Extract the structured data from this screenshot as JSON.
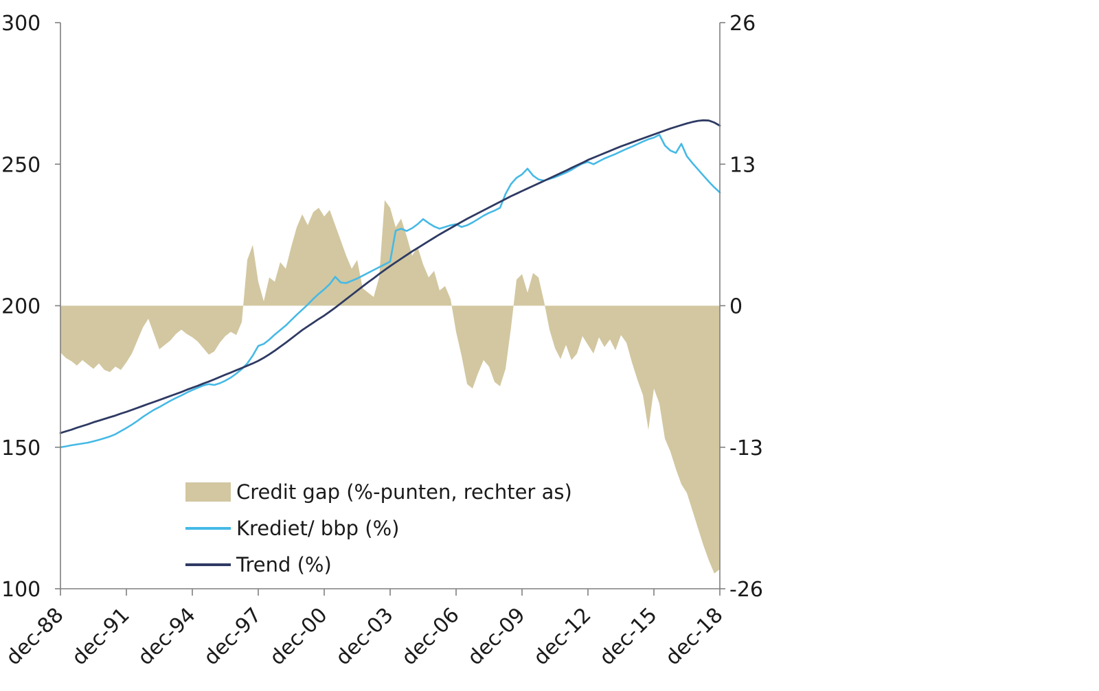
{
  "colors": {
    "background": "#ffffff",
    "area": "#d2c7a0",
    "credit_line": "#45b9e6",
    "trend_line": "#2e3a63",
    "axis": "#7f7f7f",
    "text": "#1a1a1a"
  },
  "legend": {
    "items": [
      {
        "label": "Credit gap (%-punten, rechter as)",
        "type": "area"
      },
      {
        "label": "Krediet/ bbp (%)",
        "type": "line"
      },
      {
        "label": "Trend (%)",
        "type": "line"
      }
    ]
  },
  "chart_data": {
    "type": "line+area",
    "title": "",
    "x_tick_labels": [
      "dec-88",
      "dec-91",
      "dec-94",
      "dec-97",
      "dec-00",
      "dec-03",
      "dec-06",
      "dec-09",
      "dec-12",
      "dec-15",
      "dec-18"
    ],
    "x_frequency": "quarterly",
    "x_ticks_every_n_points": 12,
    "left_axis": {
      "tick_labels": [
        "300",
        "250",
        "200",
        "150",
        "100"
      ],
      "tick_values": [
        300,
        250,
        200,
        150,
        100
      ],
      "range": [
        100,
        300
      ]
    },
    "right_axis": {
      "tick_labels": [
        "26",
        "13",
        "0",
        "-13",
        "-26"
      ],
      "tick_values": [
        26,
        13,
        0,
        -13,
        -26
      ],
      "range": [
        -26,
        26
      ]
    },
    "grid": "off",
    "legend_position": "inside-bottom-left",
    "series": [
      {
        "name": "Credit gap (%-punten, rechter as)",
        "type": "area",
        "axis": "right",
        "baseline": 0,
        "values": [
          -4.3,
          -4.8,
          -5.1,
          -5.5,
          -5.0,
          -5.4,
          -5.8,
          -5.3,
          -5.9,
          -6.1,
          -5.6,
          -5.9,
          -5.2,
          -4.4,
          -3.2,
          -2.0,
          -1.2,
          -2.6,
          -4.0,
          -3.6,
          -3.2,
          -2.6,
          -2.2,
          -2.6,
          -2.9,
          -3.3,
          -3.9,
          -4.5,
          -4.2,
          -3.4,
          -2.8,
          -2.4,
          -2.7,
          -1.5,
          4.2,
          5.6,
          2.2,
          0.4,
          2.6,
          2.2,
          4.0,
          3.4,
          5.4,
          7.2,
          8.4,
          7.4,
          8.6,
          9.0,
          8.2,
          8.8,
          7.4,
          6.0,
          4.6,
          3.4,
          4.2,
          1.6,
          1.2,
          0.8,
          2.6,
          9.7,
          9.0,
          7.2,
          8.0,
          6.4,
          4.6,
          5.4,
          3.8,
          2.6,
          3.2,
          1.4,
          1.8,
          0.6,
          -2.4,
          -4.6,
          -7.2,
          -7.6,
          -6.2,
          -5.0,
          -5.6,
          -7.0,
          -7.4,
          -5.8,
          -2.0,
          2.4,
          2.9,
          1.2,
          3.0,
          2.6,
          0.4,
          -2.2,
          -3.9,
          -4.9,
          -3.6,
          -5.0,
          -4.4,
          -2.8,
          -3.6,
          -4.4,
          -2.9,
          -3.8,
          -3.1,
          -4.1,
          -2.7,
          -3.4,
          -5.2,
          -6.8,
          -8.2,
          -11.4,
          -7.6,
          -9.0,
          -12.2,
          -13.4,
          -15.0,
          -16.4,
          -17.2,
          -18.8,
          -20.4,
          -22.0,
          -23.4,
          -24.6,
          -24.2
        ]
      },
      {
        "name": "Krediet/ bbp (%)",
        "type": "line",
        "axis": "left",
        "values": [
          150.0,
          150.3,
          150.7,
          151.0,
          151.3,
          151.6,
          152.1,
          152.6,
          153.2,
          153.8,
          154.6,
          155.7,
          156.8,
          158.0,
          159.3,
          160.7,
          162.0,
          163.2,
          164.2,
          165.3,
          166.4,
          167.4,
          168.3,
          169.3,
          170.2,
          171.0,
          171.8,
          172.3,
          172.0,
          172.6,
          173.5,
          174.6,
          176.0,
          177.6,
          179.6,
          182.4,
          185.8,
          186.5,
          188.0,
          189.8,
          191.4,
          193.0,
          194.9,
          196.8,
          198.6,
          200.4,
          202.4,
          204.2,
          205.8,
          207.6,
          210.2,
          208.2,
          208.0,
          208.8,
          209.6,
          210.6,
          211.6,
          212.6,
          213.6,
          214.6,
          215.6,
          226.5,
          227.2,
          226.4,
          227.4,
          228.8,
          230.6,
          229.2,
          228.0,
          227.2,
          227.8,
          228.4,
          228.8,
          227.8,
          228.4,
          229.4,
          230.6,
          231.8,
          232.8,
          233.6,
          234.6,
          239.5,
          243.0,
          245.2,
          246.4,
          248.4,
          246.0,
          244.6,
          244.2,
          244.8,
          245.4,
          246.2,
          247.0,
          248.0,
          249.2,
          250.2,
          250.8,
          250.0,
          251.0,
          252.0,
          252.8,
          253.6,
          254.5,
          255.4,
          256.2,
          257.1,
          258.0,
          258.8,
          259.4,
          260.4,
          256.6,
          254.8,
          254.0,
          257.2,
          252.8,
          250.4,
          248.2,
          246.0,
          243.8,
          241.8,
          240.0
        ]
      },
      {
        "name": "Trend (%)",
        "type": "line",
        "axis": "left",
        "values": [
          155.0,
          155.6,
          156.2,
          156.9,
          157.5,
          158.1,
          158.8,
          159.4,
          160.0,
          160.6,
          161.2,
          161.9,
          162.5,
          163.2,
          163.9,
          164.6,
          165.3,
          166.0,
          166.7,
          167.4,
          168.1,
          168.8,
          169.5,
          170.3,
          171.0,
          171.7,
          172.5,
          173.2,
          174.0,
          174.8,
          175.6,
          176.4,
          177.2,
          178.0,
          178.8,
          179.6,
          180.5,
          181.6,
          182.8,
          184.1,
          185.5,
          186.9,
          188.4,
          189.9,
          191.4,
          192.7,
          194.0,
          195.3,
          196.5,
          197.9,
          199.3,
          200.8,
          202.3,
          203.8,
          205.3,
          206.8,
          208.3,
          209.7,
          211.2,
          212.6,
          214.0,
          215.3,
          216.6,
          217.9,
          219.2,
          220.4,
          221.6,
          222.8,
          224.0,
          225.2,
          226.3,
          227.4,
          228.5,
          229.6,
          230.7,
          231.7,
          232.7,
          233.7,
          234.7,
          235.7,
          236.7,
          237.7,
          238.7,
          239.6,
          240.5,
          241.4,
          242.3,
          243.2,
          244.1,
          245.0,
          245.9,
          246.8,
          247.7,
          248.7,
          249.6,
          250.5,
          251.5,
          252.3,
          253.1,
          253.9,
          254.7,
          255.5,
          256.3,
          257.0,
          257.7,
          258.4,
          259.1,
          259.8,
          260.5,
          261.2,
          261.9,
          262.6,
          263.2,
          263.8,
          264.4,
          264.9,
          265.3,
          265.5,
          265.4,
          264.7,
          263.6
        ]
      }
    ]
  }
}
